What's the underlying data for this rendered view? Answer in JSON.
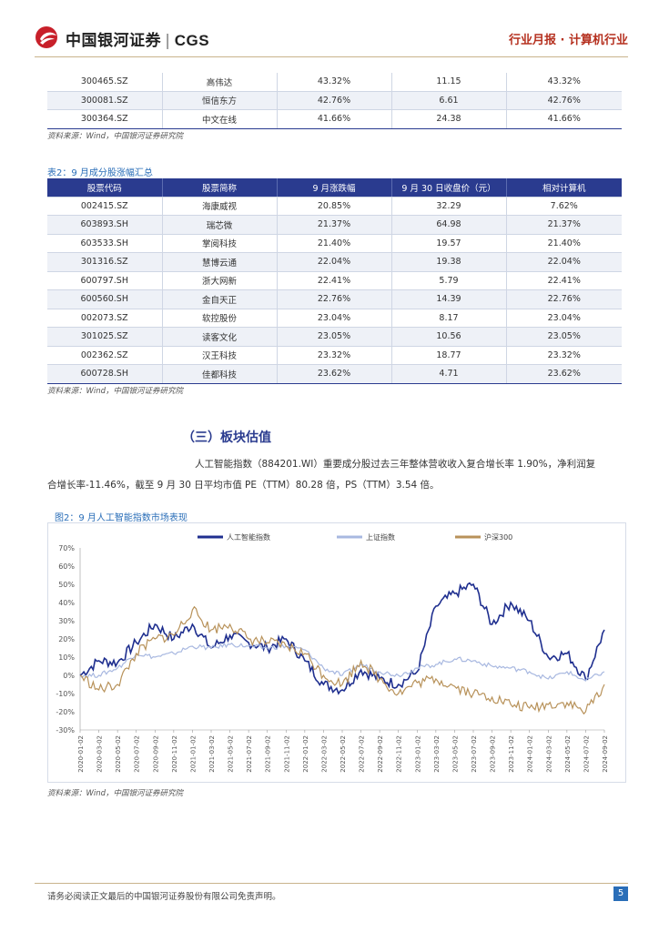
{
  "header": {
    "brand": "中国银河证券",
    "brand_abbr": "CGS",
    "report_type": "行业月报 · 计算机行业",
    "colors": {
      "brand_red": "#c8202a",
      "navy": "#2a3b8f",
      "accent_blue": "#2a6eb8"
    }
  },
  "table1": {
    "rows": [
      [
        "300465.SZ",
        "高伟达",
        "43.32%",
        "11.15",
        "43.32%"
      ],
      [
        "300081.SZ",
        "恒信东方",
        "42.76%",
        "6.61",
        "42.76%"
      ],
      [
        "300364.SZ",
        "中文在线",
        "41.66%",
        "24.38",
        "41.66%"
      ]
    ],
    "source": "资料来源：Wind，中国银河证券研究院"
  },
  "table2": {
    "caption": "表2：9 月成分股涨幅汇总",
    "headers": [
      "股票代码",
      "股票简称",
      "9 月涨跌幅",
      "9 月 30 日收盘价（元）",
      "相对计算机"
    ],
    "rows": [
      [
        "002415.SZ",
        "海康威视",
        "20.85%",
        "32.29",
        "7.62%"
      ],
      [
        "603893.SH",
        "瑞芯微",
        "21.37%",
        "64.98",
        "21.37%"
      ],
      [
        "603533.SH",
        "掌阅科技",
        "21.40%",
        "19.57",
        "21.40%"
      ],
      [
        "301316.SZ",
        "慧博云通",
        "22.04%",
        "19.38",
        "22.04%"
      ],
      [
        "600797.SH",
        "浙大网新",
        "22.41%",
        "5.79",
        "22.41%"
      ],
      [
        "600560.SH",
        "金自天正",
        "22.76%",
        "14.39",
        "22.76%"
      ],
      [
        "002073.SZ",
        "软控股份",
        "23.04%",
        "8.17",
        "23.04%"
      ],
      [
        "301025.SZ",
        "读客文化",
        "23.05%",
        "10.56",
        "23.05%"
      ],
      [
        "002362.SZ",
        "汉王科技",
        "23.32%",
        "18.77",
        "23.32%"
      ],
      [
        "600728.SH",
        "佳都科技",
        "23.62%",
        "4.71",
        "23.62%"
      ]
    ],
    "source": "资料来源：Wind，中国银河证券研究院"
  },
  "section": {
    "title": "（三）板块估值",
    "line1": "人工智能指数（884201.WI）重要成分股过去三年整体营收收入复合增长率 1.90%，净利润复",
    "line2": "合增长率-11.46%，截至 9 月 30 日平均市值 PE（TTM）80.28 倍，PS（TTM）3.54 倍。"
  },
  "chart": {
    "caption": "图2：9 月人工智能指数市场表现",
    "source": "资料来源：Wind，中国银河证券研究院"
  },
  "chart_data": {
    "type": "line",
    "title": "9 月人工智能指数市场表现",
    "ylim": [
      -0.3,
      0.7
    ],
    "yticks": [
      -0.3,
      -0.2,
      -0.1,
      0.0,
      0.1,
      0.2,
      0.3,
      0.4,
      0.5,
      0.6,
      0.7
    ],
    "ytick_labels": [
      "-30%",
      "-20%",
      "-10%",
      "0%",
      "10%",
      "20%",
      "30%",
      "40%",
      "50%",
      "60%",
      "70%"
    ],
    "x": [
      "2020-01-02",
      "2020-03-02",
      "2020-05-02",
      "2020-07-02",
      "2020-09-02",
      "2020-11-02",
      "2021-01-02",
      "2021-03-02",
      "2021-05-02",
      "2021-07-02",
      "2021-09-02",
      "2021-11-02",
      "2022-01-02",
      "2022-03-02",
      "2022-05-02",
      "2022-07-02",
      "2022-09-02",
      "2022-11-02",
      "2023-01-02",
      "2023-03-02",
      "2023-05-02",
      "2023-07-02",
      "2023-09-02",
      "2023-11-02",
      "2024-01-02",
      "2024-03-02",
      "2024-05-02",
      "2024-07-02",
      "2024-09-02"
    ],
    "series": [
      {
        "name": "人工智能指数",
        "color": "#1f2f8f",
        "values": [
          0.0,
          0.08,
          0.07,
          0.18,
          0.28,
          0.2,
          0.28,
          0.15,
          0.22,
          0.18,
          0.15,
          0.2,
          0.08,
          -0.05,
          -0.08,
          0.03,
          -0.02,
          -0.05,
          0.02,
          0.38,
          0.45,
          0.5,
          0.28,
          0.4,
          0.3,
          0.1,
          0.12,
          -0.02,
          0.25
        ]
      },
      {
        "name": "上证指数",
        "color": "#a8b8e0",
        "values": [
          0.0,
          0.0,
          0.04,
          0.12,
          0.1,
          0.12,
          0.16,
          0.15,
          0.17,
          0.16,
          0.15,
          0.16,
          0.14,
          0.04,
          0.0,
          0.06,
          0.02,
          0.0,
          0.04,
          0.06,
          0.09,
          0.08,
          0.05,
          0.04,
          0.02,
          -0.02,
          0.02,
          -0.03,
          0.02
        ]
      },
      {
        "name": "沪深300",
        "color": "#b8925a",
        "values": [
          0.0,
          -0.08,
          -0.05,
          0.12,
          0.2,
          0.22,
          0.36,
          0.25,
          0.28,
          0.2,
          0.18,
          0.16,
          0.12,
          0.0,
          -0.05,
          0.08,
          -0.02,
          -0.1,
          -0.04,
          -0.02,
          -0.06,
          -0.1,
          -0.12,
          -0.16,
          -0.18,
          -0.16,
          -0.15,
          -0.2,
          -0.05
        ]
      }
    ]
  },
  "footer": {
    "disclaimer": "请务必阅读正文最后的中国银河证券股份有限公司免责声明。",
    "page": "5"
  }
}
